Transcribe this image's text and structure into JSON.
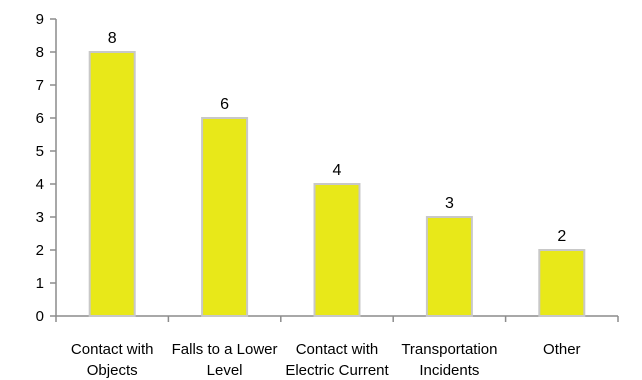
{
  "chart_data": {
    "type": "bar",
    "categories": [
      [
        "Contact with",
        "Objects"
      ],
      [
        "Falls to a Lower",
        "Level"
      ],
      [
        "Contact with",
        "Electric Current"
      ],
      [
        "Transportation",
        "Incidents"
      ],
      [
        "Other"
      ]
    ],
    "values": [
      8,
      6,
      4,
      3,
      2
    ],
    "data_labels": [
      "8",
      "6",
      "4",
      "3",
      "2"
    ],
    "y_ticks": [
      "0",
      "1",
      "2",
      "3",
      "4",
      "5",
      "6",
      "7",
      "8",
      "9"
    ],
    "ylim": [
      0,
      9
    ],
    "title": "",
    "xlabel": "",
    "ylabel": "",
    "grid": false,
    "legend": "none",
    "colors": {
      "bar": "#e8e819",
      "bar_border": "#c8c8c8",
      "axis": "#8c8c8c"
    }
  }
}
